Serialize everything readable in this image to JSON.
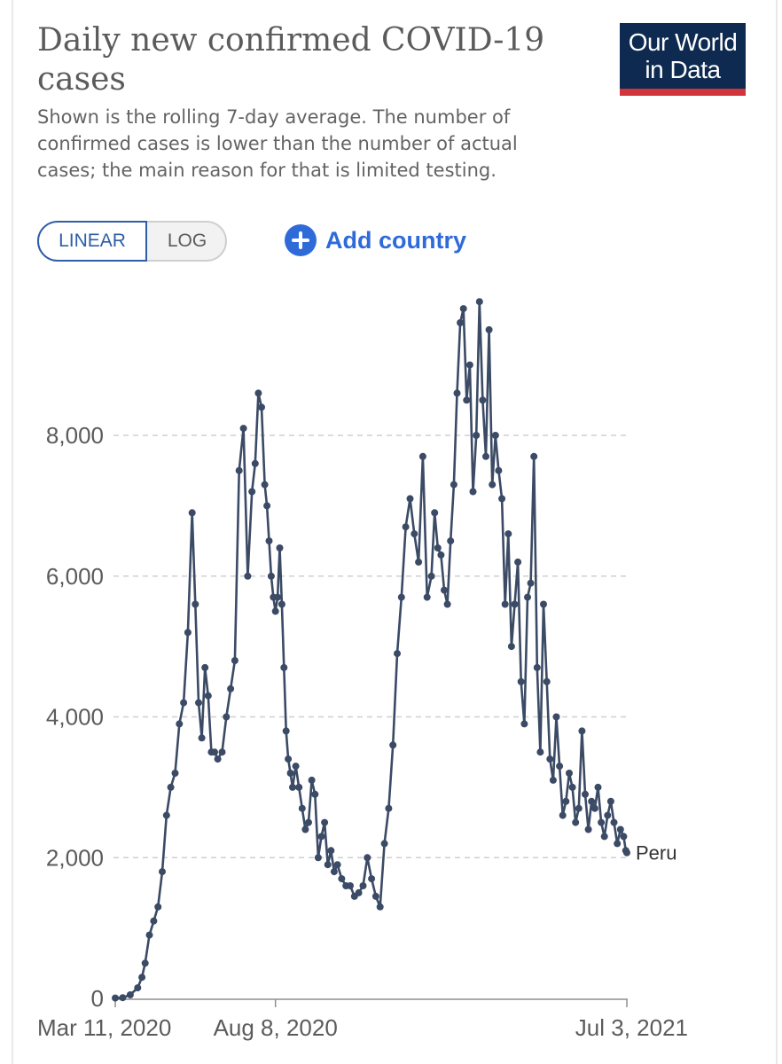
{
  "header": {
    "title": "Daily new confirmed COVID-19 cases",
    "subtitle": "Shown is the rolling 7-day average. The number of confirmed cases is lower than the number of actual cases; the main reason for that is limited testing.",
    "logo_line1": "Our World",
    "logo_line2": "in Data"
  },
  "controls": {
    "linear_label": "LINEAR",
    "log_label": "LOG",
    "add_country_label": "Add country",
    "selected_scale": "linear"
  },
  "colors": {
    "series": "#3b4a65",
    "grid": "#cfcfcf",
    "axis_text": "#5b5b5b",
    "accent": "#2e6bd9",
    "logo_bg": "#0e2a50",
    "logo_bar": "#d1343a"
  },
  "chart_data": {
    "type": "line",
    "title": "Daily new confirmed COVID-19 cases",
    "subtitle": "Shown is the rolling 7-day average. The number of confirmed cases is lower than the number of actual cases; the main reason for that is limited testing.",
    "x_tick_labels": [
      "Mar 11, 2020",
      "Aug 8, 2020",
      "Jul 3, 2021"
    ],
    "x_ticks": [
      "2020-03-11",
      "2020-08-08",
      "2021-07-03"
    ],
    "xlim": [
      "2020-03-11",
      "2021-07-03"
    ],
    "y_ticks": [
      0,
      2000,
      4000,
      6000,
      8000
    ],
    "y_tick_labels": [
      "0",
      "2,000",
      "4,000",
      "6,000",
      "8,000"
    ],
    "ylim": [
      0,
      10000
    ],
    "grid": true,
    "series": [
      {
        "name": "Peru",
        "x": [
          "2020-03-11",
          "2020-03-18",
          "2020-03-25",
          "2020-04-01",
          "2020-04-05",
          "2020-04-08",
          "2020-04-12",
          "2020-04-16",
          "2020-04-20",
          "2020-04-24",
          "2020-04-28",
          "2020-05-02",
          "2020-05-06",
          "2020-05-10",
          "2020-05-14",
          "2020-05-18",
          "2020-05-22",
          "2020-05-25",
          "2020-05-28",
          "2020-05-31",
          "2020-06-03",
          "2020-06-06",
          "2020-06-09",
          "2020-06-12",
          "2020-06-15",
          "2020-06-19",
          "2020-06-23",
          "2020-06-27",
          "2020-07-01",
          "2020-07-05",
          "2020-07-09",
          "2020-07-13",
          "2020-07-17",
          "2020-07-20",
          "2020-07-23",
          "2020-07-26",
          "2020-07-29",
          "2020-07-31",
          "2020-08-02",
          "2020-08-04",
          "2020-08-06",
          "2020-08-08",
          "2020-08-10",
          "2020-08-12",
          "2020-08-14",
          "2020-08-16",
          "2020-08-18",
          "2020-08-20",
          "2020-08-22",
          "2020-08-24",
          "2020-08-27",
          "2020-08-30",
          "2020-09-02",
          "2020-09-05",
          "2020-09-08",
          "2020-09-11",
          "2020-09-14",
          "2020-09-17",
          "2020-09-20",
          "2020-09-23",
          "2020-09-26",
          "2020-09-29",
          "2020-10-02",
          "2020-10-05",
          "2020-10-09",
          "2020-10-13",
          "2020-10-17",
          "2020-10-21",
          "2020-10-25",
          "2020-10-29",
          "2020-11-02",
          "2020-11-06",
          "2020-11-10",
          "2020-11-14",
          "2020-11-18",
          "2020-11-22",
          "2020-11-26",
          "2020-11-30",
          "2020-12-04",
          "2020-12-08",
          "2020-12-12",
          "2020-12-16",
          "2020-12-20",
          "2020-12-24",
          "2020-12-28",
          "2021-01-01",
          "2021-01-04",
          "2021-01-07",
          "2021-01-10",
          "2021-01-13",
          "2021-01-16",
          "2021-01-19",
          "2021-01-22",
          "2021-01-25",
          "2021-01-28",
          "2021-01-31",
          "2021-02-03",
          "2021-02-06",
          "2021-02-09",
          "2021-02-12",
          "2021-02-15",
          "2021-02-18",
          "2021-02-21",
          "2021-02-24",
          "2021-02-27",
          "2021-03-02",
          "2021-03-05",
          "2021-03-08",
          "2021-03-11",
          "2021-03-14",
          "2021-03-17",
          "2021-03-20",
          "2021-03-23",
          "2021-03-26",
          "2021-03-29",
          "2021-04-01",
          "2021-04-04",
          "2021-04-07",
          "2021-04-10",
          "2021-04-13",
          "2021-04-16",
          "2021-04-19",
          "2021-04-22",
          "2021-04-25",
          "2021-04-28",
          "2021-05-01",
          "2021-05-04",
          "2021-05-07",
          "2021-05-10",
          "2021-05-13",
          "2021-05-16",
          "2021-05-19",
          "2021-05-22",
          "2021-05-25",
          "2021-05-28",
          "2021-05-31",
          "2021-06-03",
          "2021-06-06",
          "2021-06-09",
          "2021-06-12",
          "2021-06-15",
          "2021-06-18",
          "2021-06-21",
          "2021-06-24",
          "2021-06-27",
          "2021-06-30",
          "2021-07-02",
          "2021-07-03"
        ],
        "values": [
          5,
          10,
          50,
          150,
          300,
          500,
          900,
          1100,
          1300,
          1800,
          2600,
          3000,
          3200,
          3900,
          4200,
          5200,
          6900,
          5600,
          4200,
          3700,
          4700,
          4300,
          3500,
          3500,
          3400,
          3500,
          4000,
          4400,
          4800,
          7500,
          8100,
          6000,
          7200,
          7600,
          8600,
          8400,
          7300,
          7000,
          6500,
          6000,
          5700,
          5500,
          5700,
          6400,
          5600,
          4700,
          3800,
          3400,
          3200,
          3000,
          3300,
          3000,
          2700,
          2400,
          2500,
          3100,
          2900,
          2000,
          2300,
          2500,
          1900,
          2100,
          1800,
          1900,
          1700,
          1600,
          1600,
          1450,
          1500,
          1600,
          2000,
          1700,
          1450,
          1300,
          2200,
          2700,
          3600,
          4900,
          5700,
          6700,
          7100,
          6600,
          6200,
          7700,
          5700,
          6000,
          6900,
          6400,
          6300,
          5800,
          5600,
          6500,
          7300,
          8600,
          9600,
          9800,
          8500,
          9000,
          7200,
          8000,
          9900,
          8500,
          7700,
          9500,
          7300,
          8000,
          7500,
          7100,
          5600,
          6600,
          5000,
          5600,
          6200,
          4500,
          3900,
          5700,
          5900,
          7700,
          4700,
          3500,
          5600,
          4500,
          3400,
          3100,
          4000,
          3300,
          2600,
          2800,
          3200,
          3000,
          2500,
          2700,
          3800,
          2900,
          2400,
          2800,
          2700,
          3000,
          2500,
          2300,
          2600,
          2800,
          2500,
          2200,
          2400,
          2300,
          2100,
          2070
        ]
      }
    ],
    "series_label": "Peru",
    "last_value": 2070
  }
}
